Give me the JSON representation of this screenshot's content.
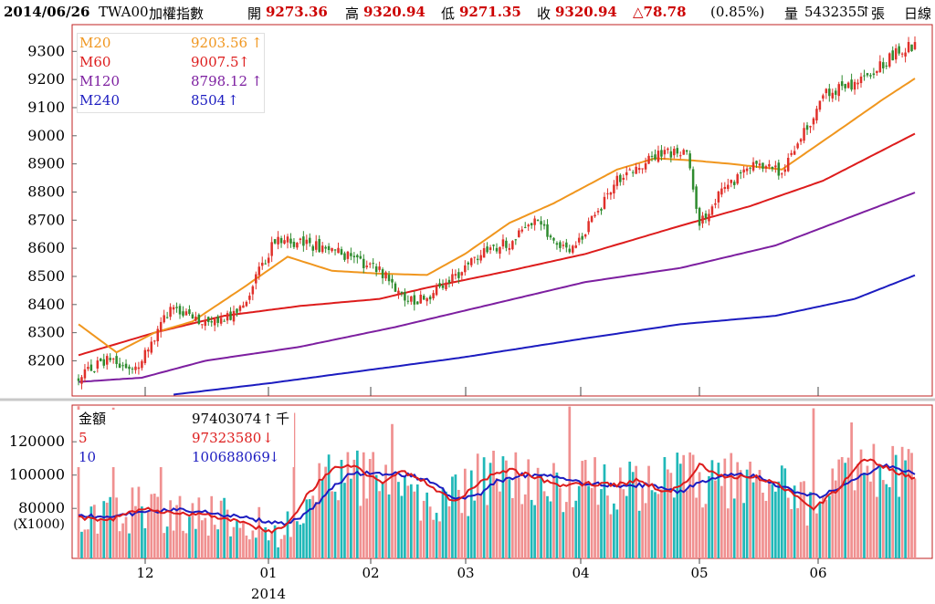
{
  "header": {
    "date": "2014/06/26",
    "symbol": "TWA00",
    "name": "加權指數",
    "open_label": "開",
    "open": "9273.36",
    "high_label": "高",
    "high": "9320.94",
    "low_label": "低",
    "low": "9271.35",
    "close_label": "收",
    "close": "9320.94",
    "change": "△78.78",
    "change_pct": "(0.85%)",
    "volume_label": "量",
    "volume": "5432355",
    "volume_arrow": "↑",
    "volume_unit": "張",
    "period": "日線"
  },
  "colors": {
    "up": "#e0302a",
    "down": "#2e8b2e",
    "ma20": "#f0961e",
    "ma60": "#dd1c1c",
    "ma120": "#7d1fa0",
    "ma240": "#1c1cc0",
    "vol_up": "#f09090",
    "vol_down": "#20b8b8",
    "vma5": "#dd1c1c",
    "vma10": "#1c1cc0",
    "frame": "#c02020"
  },
  "price_legend": [
    {
      "name": "M20",
      "value": "9203.56",
      "arrow": "↑"
    },
    {
      "name": "M60",
      "value": "9007.5",
      "arrow": "↑"
    },
    {
      "name": "M120",
      "value": "8798.12",
      "arrow": "↑"
    },
    {
      "name": "M240",
      "value": "8504",
      "arrow": "↑"
    }
  ],
  "volume_legend": {
    "title": "金額",
    "title_value": "97403074",
    "title_arrow": "↑",
    "title_unit": "千",
    "ma5_name": "5",
    "ma5_value": "97323580",
    "ma5_arrow": "↓",
    "ma10_name": "10",
    "ma10_value": "100688069",
    "ma10_arrow": "↓"
  },
  "volume_unit_label": "(X1000)",
  "chart_data": [
    {
      "type": "candlestick",
      "title": "TWA00 加權指數 日線",
      "ylim": [
        8075,
        9395
      ],
      "y_ticks": [
        "8200",
        "8300",
        "8400",
        "8500",
        "8600",
        "8700",
        "8800",
        "8900",
        "9000",
        "9100",
        "9200",
        "9300"
      ],
      "x_tick_labels": [
        "12",
        "01",
        "02",
        "03",
        "04",
        "05",
        "06"
      ],
      "x_year_label": "2014",
      "anchors": {
        "close": [
          [
            0,
            8140
          ],
          [
            10,
            8210
          ],
          [
            18,
            8170
          ],
          [
            30,
            8400
          ],
          [
            38,
            8330
          ],
          [
            50,
            8360
          ],
          [
            62,
            8630
          ],
          [
            80,
            8600
          ],
          [
            95,
            8520
          ],
          [
            106,
            8400
          ],
          [
            118,
            8490
          ],
          [
            128,
            8590
          ],
          [
            136,
            8620
          ],
          [
            144,
            8700
          ],
          [
            155,
            8580
          ],
          [
            170,
            8840
          ],
          [
            182,
            8930
          ],
          [
            192,
            8950
          ],
          [
            196,
            8680
          ],
          [
            204,
            8820
          ],
          [
            214,
            8900
          ],
          [
            222,
            8870
          ],
          [
            236,
            9150
          ],
          [
            248,
            9200
          ],
          [
            260,
            9310
          ],
          [
            264,
            9321
          ]
        ],
        "ma20": [
          [
            0,
            8330
          ],
          [
            12,
            8230
          ],
          [
            24,
            8300
          ],
          [
            36,
            8340
          ],
          [
            52,
            8460
          ],
          [
            66,
            8570
          ],
          [
            80,
            8520
          ],
          [
            95,
            8510
          ],
          [
            110,
            8505
          ],
          [
            122,
            8580
          ],
          [
            136,
            8690
          ],
          [
            150,
            8760
          ],
          [
            170,
            8880
          ],
          [
            182,
            8920
          ],
          [
            194,
            8912
          ],
          [
            206,
            8900
          ],
          [
            222,
            8880
          ],
          [
            240,
            9020
          ],
          [
            254,
            9130
          ],
          [
            264,
            9203.56
          ]
        ],
        "ma60": [
          [
            0,
            8220
          ],
          [
            24,
            8300
          ],
          [
            46,
            8360
          ],
          [
            70,
            8395
          ],
          [
            95,
            8420
          ],
          [
            110,
            8460
          ],
          [
            136,
            8520
          ],
          [
            160,
            8580
          ],
          [
            190,
            8680
          ],
          [
            212,
            8750
          ],
          [
            235,
            8840
          ],
          [
            264,
            9007.5
          ]
        ],
        "ma120": [
          [
            0,
            8125
          ],
          [
            20,
            8140
          ],
          [
            40,
            8200
          ],
          [
            70,
            8250
          ],
          [
            100,
            8320
          ],
          [
            130,
            8400
          ],
          [
            160,
            8480
          ],
          [
            190,
            8530
          ],
          [
            220,
            8610
          ],
          [
            264,
            8798.12
          ]
        ],
        "ma240": [
          [
            30,
            8080
          ],
          [
            60,
            8120
          ],
          [
            90,
            8165
          ],
          [
            120,
            8210
          ],
          [
            160,
            8280
          ],
          [
            190,
            8330
          ],
          [
            220,
            8360
          ],
          [
            245,
            8420
          ],
          [
            264,
            8504
          ]
        ]
      }
    },
    {
      "type": "bar",
      "title": "金額",
      "y_unit": "(X1000)",
      "ylim": [
        50000,
        142000
      ],
      "y_ticks": [
        "80000",
        "100000",
        "120000"
      ],
      "anchors": {
        "volume": [
          [
            0,
            70000
          ],
          [
            10,
            75000
          ],
          [
            20,
            82000
          ],
          [
            30,
            78000
          ],
          [
            40,
            76000
          ],
          [
            50,
            72000
          ],
          [
            60,
            70000
          ],
          [
            66,
            68000
          ],
          [
            70,
            80000
          ],
          [
            76,
            96000
          ],
          [
            82,
            102000
          ],
          [
            88,
            99000
          ],
          [
            100,
            95000
          ],
          [
            108,
            88000
          ],
          [
            118,
            85000
          ],
          [
            126,
            96000
          ],
          [
            134,
            103000
          ],
          [
            142,
            98000
          ],
          [
            152,
            93000
          ],
          [
            162,
            95000
          ],
          [
            172,
            92000
          ],
          [
            182,
            92000
          ],
          [
            190,
            98000
          ],
          [
            200,
            95000
          ],
          [
            208,
            97000
          ],
          [
            214,
            98000
          ],
          [
            224,
            89000
          ],
          [
            232,
            80000
          ],
          [
            240,
            95000
          ],
          [
            250,
            105000
          ],
          [
            258,
            102000
          ],
          [
            264,
            97403
          ]
        ],
        "vma5": [
          [
            0,
            74000
          ],
          [
            10,
            73000
          ],
          [
            20,
            80000
          ],
          [
            30,
            77000
          ],
          [
            40,
            76000
          ],
          [
            50,
            73000
          ],
          [
            60,
            66000
          ],
          [
            66,
            70000
          ],
          [
            72,
            88000
          ],
          [
            78,
            100000
          ],
          [
            82,
            106000
          ],
          [
            88,
            104000
          ],
          [
            96,
            95000
          ],
          [
            102,
            103000
          ],
          [
            110,
            95000
          ],
          [
            118,
            84000
          ],
          [
            124,
            91000
          ],
          [
            130,
            100000
          ],
          [
            136,
            103000
          ],
          [
            144,
            99000
          ],
          [
            152,
            93000
          ],
          [
            160,
            95000
          ],
          [
            170,
            94000
          ],
          [
            176,
            97000
          ],
          [
            186,
            90000
          ],
          [
            192,
            97000
          ],
          [
            196,
            106000
          ],
          [
            204,
            99000
          ],
          [
            214,
            99000
          ],
          [
            222,
            93000
          ],
          [
            232,
            80000
          ],
          [
            240,
            92000
          ],
          [
            248,
            110000
          ],
          [
            256,
            104000
          ],
          [
            264,
            97324
          ]
        ],
        "vma10": [
          [
            0,
            76000
          ],
          [
            10,
            74000
          ],
          [
            20,
            78000
          ],
          [
            30,
            79000
          ],
          [
            40,
            78000
          ],
          [
            50,
            75000
          ],
          [
            60,
            72000
          ],
          [
            66,
            70000
          ],
          [
            74,
            80000
          ],
          [
            80,
            92000
          ],
          [
            86,
            101000
          ],
          [
            96,
            101000
          ],
          [
            104,
            100000
          ],
          [
            112,
            96000
          ],
          [
            118,
            86000
          ],
          [
            126,
            88000
          ],
          [
            132,
            96000
          ],
          [
            140,
            100000
          ],
          [
            150,
            99000
          ],
          [
            160,
            95000
          ],
          [
            170,
            94000
          ],
          [
            180,
            94000
          ],
          [
            190,
            90000
          ],
          [
            196,
            96000
          ],
          [
            206,
            101000
          ],
          [
            214,
            99000
          ],
          [
            226,
            90000
          ],
          [
            234,
            87000
          ],
          [
            244,
            96000
          ],
          [
            254,
            106000
          ],
          [
            264,
            100688
          ]
        ]
      }
    }
  ]
}
